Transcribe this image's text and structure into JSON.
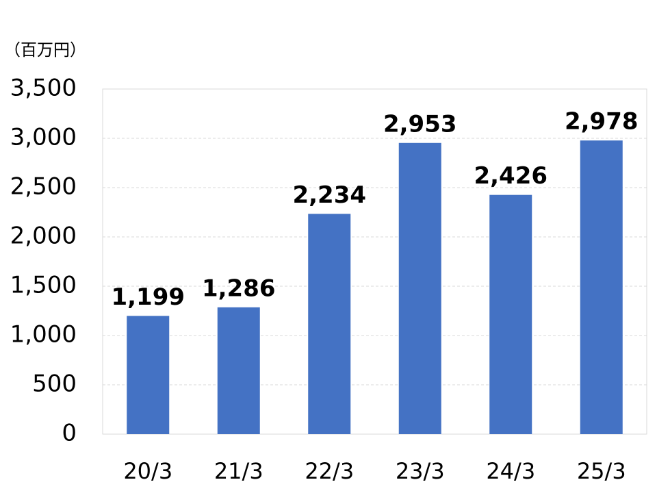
{
  "chart_data": {
    "type": "bar",
    "y_label": "（百万円）",
    "categories": [
      "20/3",
      "21/3",
      "22/3",
      "23/3",
      "24/3",
      "25/3"
    ],
    "values": [
      1199,
      1286,
      2234,
      2953,
      2426,
      2978
    ],
    "value_labels": [
      "1,199",
      "1,286",
      "2,234",
      "2,953",
      "2,426",
      "2,978"
    ],
    "color": "#4472c4",
    "ylim": [
      0,
      3500
    ],
    "yticks": [
      0,
      500,
      {
        "value": 1000,
        "label": "1,000"
      },
      {
        "value": 1500,
        "label": "1,500"
      },
      {
        "value": 2000,
        "label": "2,000"
      },
      {
        "value": 2500,
        "label": "2,500"
      },
      {
        "value": 3000,
        "label": "3,000"
      },
      {
        "value": 3500,
        "label": "3,500"
      }
    ],
    "grid": true
  }
}
